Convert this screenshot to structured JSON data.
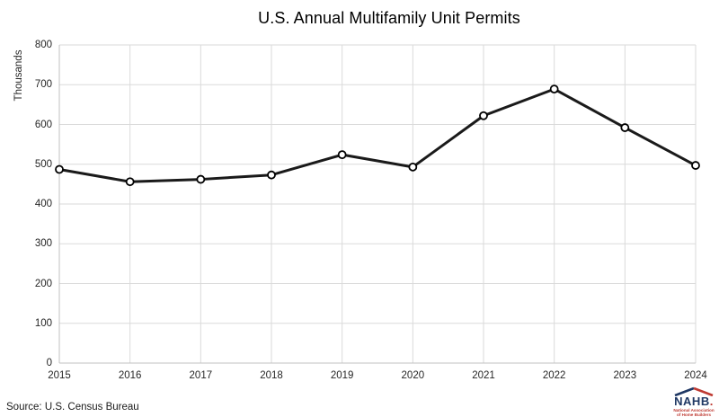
{
  "chart_data": {
    "type": "line",
    "title": "U.S. Annual Multifamily Unit Permits",
    "xlabel": "",
    "ylabel": "Thousands",
    "x": [
      2015,
      2016,
      2017,
      2018,
      2019,
      2020,
      2021,
      2022,
      2023,
      2024
    ],
    "values": [
      487,
      456,
      462,
      473,
      524,
      493,
      622,
      689,
      592,
      497
    ],
    "ylim": [
      0,
      800
    ],
    "ytick_interval": 100,
    "grid": true,
    "legend": "none",
    "line_color": "#1a1a1a",
    "marker_fill": "#ffffff",
    "marker_stroke": "#000000",
    "gridline_color": "#dadada",
    "axis_line_color": "#c0c0c0"
  },
  "source": {
    "text": "Source: U.S. Census Bureau"
  },
  "logo": {
    "name": "NAHB",
    "period": ".",
    "sub_line1": "National Association",
    "sub_line2": "of Home Builders",
    "navy": "#1f3864",
    "red": "#bf3a32"
  }
}
